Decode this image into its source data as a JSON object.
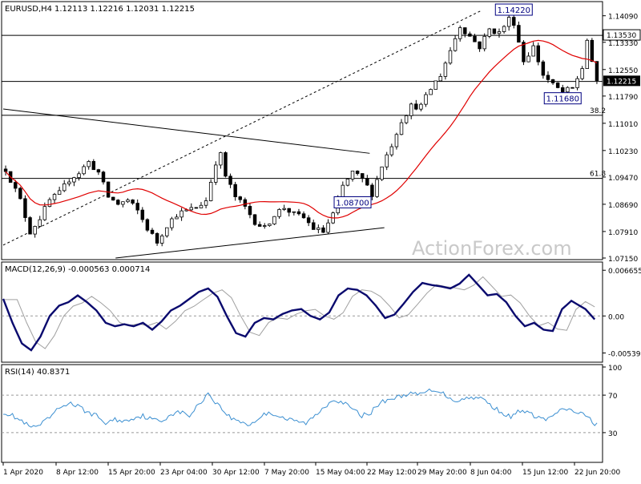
{
  "header": {
    "symbol": "EURUSD,H4",
    "ohlc": "1.12113 1.12216 1.12031 1.12215"
  },
  "watermark": "ActionForex.com",
  "colors": {
    "candle": "#000000",
    "ma": "#e00000",
    "macd_main": "#0a0a6e",
    "macd_signal": "#a0a0a0",
    "rsi": "#3b8fd1",
    "price_badge_bg": "#000000",
    "price_badge_text": "#ffffff",
    "label_border": "#000080",
    "label_text": "#000080"
  },
  "chart_data": [
    {
      "type": "candlestick",
      "title": "EURUSD,H4",
      "ylim": [
        1.0715,
        1.1445
      ],
      "y_ticks": [
        "1.14090",
        "1.13330",
        "1.12550",
        "1.11790",
        "1.11010",
        "1.10230",
        "1.09470",
        "1.08690",
        "1.07910",
        "1.07150"
      ],
      "last_price": "1.12215",
      "level_label": "1.13530",
      "annotations": [
        {
          "text": "1.14220",
          "x": 104,
          "y": 1.1422
        },
        {
          "text": "1.11680",
          "x": 114,
          "y": 1.1168
        },
        {
          "text": "1.08700",
          "x": 71,
          "y": 1.087
        }
      ],
      "fib_labels": [
        {
          "text": "38.2",
          "y": 1.1124
        },
        {
          "text": "61.8",
          "y": 1.0943
        }
      ],
      "horizontal_levels": [
        1.1353,
        1.1221,
        1.1124,
        1.0943
      ],
      "trendlines": [
        {
          "style": "dashed",
          "from": [
            0,
            1.0752
          ],
          "to": [
            98,
            1.1425
          ]
        },
        {
          "style": "solid",
          "from": [
            0,
            1.1142
          ],
          "to": [
            75,
            1.1015
          ]
        },
        {
          "style": "solid",
          "from": [
            23,
            1.0715
          ],
          "to": [
            78,
            1.0802
          ]
        }
      ],
      "candles_count": 122,
      "close_anchors": [
        [
          0,
          1.097
        ],
        [
          3,
          1.088
        ],
        [
          5,
          1.079
        ],
        [
          7,
          1.083
        ],
        [
          9,
          1.088
        ],
        [
          11,
          1.09
        ],
        [
          13,
          1.094
        ],
        [
          15,
          1.096
        ],
        [
          17,
          1.099
        ],
        [
          19,
          1.096
        ],
        [
          21,
          1.089
        ],
        [
          23,
          1.087
        ],
        [
          25,
          1.088
        ],
        [
          27,
          1.085
        ],
        [
          29,
          1.08
        ],
        [
          31,
          1.076
        ],
        [
          33,
          1.081
        ],
        [
          35,
          1.084
        ],
        [
          37,
          1.085
        ],
        [
          39,
          1.086
        ],
        [
          41,
          1.088
        ],
        [
          43,
          1.099
        ],
        [
          44,
          1.101
        ],
        [
          45,
          1.095
        ],
        [
          47,
          1.089
        ],
        [
          49,
          1.086
        ],
        [
          51,
          1.082
        ],
        [
          53,
          1.08
        ],
        [
          55,
          1.084
        ],
        [
          57,
          1.086
        ],
        [
          59,
          1.084
        ],
        [
          61,
          1.083
        ],
        [
          63,
          1.08
        ],
        [
          65,
          1.079
        ],
        [
          67,
          1.084
        ],
        [
          69,
          1.092
        ],
        [
          71,
          1.096
        ],
        [
          73,
          1.094
        ],
        [
          75,
          1.09
        ],
        [
          77,
          1.098
        ],
        [
          79,
          1.104
        ],
        [
          81,
          1.111
        ],
        [
          83,
          1.115
        ],
        [
          85,
          1.115
        ],
        [
          87,
          1.12
        ],
        [
          89,
          1.124
        ],
        [
          91,
          1.131
        ],
        [
          93,
          1.138
        ],
        [
          95,
          1.135
        ],
        [
          97,
          1.132
        ],
        [
          99,
          1.137
        ],
        [
          101,
          1.136
        ],
        [
          103,
          1.14
        ],
        [
          104,
          1.139
        ],
        [
          106,
          1.128
        ],
        [
          108,
          1.132
        ],
        [
          110,
          1.124
        ],
        [
          112,
          1.121
        ],
        [
          114,
          1.119
        ],
        [
          116,
          1.12
        ],
        [
          118,
          1.126
        ],
        [
          119,
          1.134
        ],
        [
          120,
          1.127
        ],
        [
          121,
          1.1222
        ]
      ]
    },
    {
      "type": "line",
      "title": "MACD(12,26,9) -0.000563 0.000714",
      "ylim": [
        -0.0065,
        0.0075
      ],
      "y_ticks": [
        "0.006655",
        "0.00",
        "-0.005391"
      ],
      "series": [
        {
          "name": "main",
          "anchors": [
            [
              0,
              0.0025
            ],
            [
              2,
              -0.001
            ],
            [
              4,
              -0.004
            ],
            [
              6,
              -0.005
            ],
            [
              8,
              -0.003
            ],
            [
              10,
              0.0
            ],
            [
              12,
              0.0015
            ],
            [
              14,
              0.002
            ],
            [
              16,
              0.003
            ],
            [
              18,
              0.002
            ],
            [
              20,
              0.0008
            ],
            [
              22,
              -0.001
            ],
            [
              24,
              -0.0015
            ],
            [
              26,
              -0.0012
            ],
            [
              28,
              -0.0015
            ],
            [
              30,
              -0.001
            ],
            [
              32,
              -0.002
            ],
            [
              34,
              -0.0008
            ],
            [
              36,
              0.0008
            ],
            [
              38,
              0.0015
            ],
            [
              40,
              0.0025
            ],
            [
              42,
              0.0035
            ],
            [
              44,
              0.004
            ],
            [
              46,
              0.0028
            ],
            [
              48,
              0.0
            ],
            [
              50,
              -0.0025
            ],
            [
              52,
              -0.003
            ],
            [
              54,
              -0.001
            ],
            [
              56,
              -0.0003
            ],
            [
              58,
              -0.0005
            ],
            [
              60,
              0.0003
            ],
            [
              62,
              0.0008
            ],
            [
              64,
              0.001
            ],
            [
              66,
              0.0
            ],
            [
              68,
              -0.0005
            ],
            [
              70,
              0.0005
            ],
            [
              72,
              0.003
            ],
            [
              74,
              0.004
            ],
            [
              76,
              0.0038
            ],
            [
              78,
              0.003
            ],
            [
              80,
              0.0015
            ],
            [
              82,
              -0.0003
            ],
            [
              84,
              0.0002
            ],
            [
              86,
              0.0018
            ],
            [
              88,
              0.0035
            ],
            [
              90,
              0.0048
            ],
            [
              92,
              0.0045
            ],
            [
              94,
              0.0043
            ],
            [
              96,
              0.004
            ],
            [
              98,
              0.0047
            ],
            [
              100,
              0.006
            ],
            [
              102,
              0.0045
            ],
            [
              104,
              0.003
            ],
            [
              106,
              0.0032
            ],
            [
              108,
              0.002
            ],
            [
              110,
              0.0
            ],
            [
              112,
              -0.0015
            ],
            [
              114,
              -0.001
            ],
            [
              116,
              -0.002
            ],
            [
              118,
              -0.0022
            ],
            [
              120,
              0.001
            ],
            [
              122,
              0.0022
            ],
            [
              125,
              0.001
            ],
            [
              127,
              -0.0005
            ]
          ]
        },
        {
          "name": "signal"
        }
      ]
    },
    {
      "type": "line",
      "title": "RSI(14) 40.8371",
      "ylim": [
        0,
        100
      ],
      "y_ticks": [
        "100",
        "70",
        "30"
      ],
      "levels": [
        70,
        30
      ],
      "series": [
        {
          "name": "rsi",
          "anchors": [
            [
              0,
              52
            ],
            [
              2,
              48
            ],
            [
              4,
              42
            ],
            [
              6,
              35
            ],
            [
              8,
              38
            ],
            [
              10,
              46
            ],
            [
              12,
              56
            ],
            [
              14,
              62
            ],
            [
              16,
              58
            ],
            [
              18,
              52
            ],
            [
              20,
              48
            ],
            [
              22,
              40
            ],
            [
              24,
              44
            ],
            [
              26,
              42
            ],
            [
              28,
              46
            ],
            [
              30,
              48
            ],
            [
              32,
              44
            ],
            [
              34,
              42
            ],
            [
              36,
              50
            ],
            [
              38,
              52
            ],
            [
              40,
              48
            ],
            [
              42,
              60
            ],
            [
              44,
              72
            ],
            [
              45,
              66
            ],
            [
              47,
              55
            ],
            [
              49,
              45
            ],
            [
              51,
              42
            ],
            [
              53,
              38
            ],
            [
              55,
              46
            ],
            [
              57,
              52
            ],
            [
              59,
              48
            ],
            [
              61,
              44
            ],
            [
              63,
              42
            ],
            [
              65,
              40
            ],
            [
              67,
              48
            ],
            [
              69,
              58
            ],
            [
              71,
              66
            ],
            [
              73,
              62
            ],
            [
              75,
              55
            ],
            [
              77,
              48
            ],
            [
              79,
              52
            ],
            [
              81,
              62
            ],
            [
              83,
              66
            ],
            [
              85,
              68
            ],
            [
              87,
              72
            ],
            [
              89,
              70
            ],
            [
              91,
              74
            ],
            [
              93,
              76
            ],
            [
              95,
              70
            ],
            [
              97,
              64
            ],
            [
              99,
              66
            ],
            [
              101,
              68
            ],
            [
              103,
              66
            ],
            [
              105,
              58
            ],
            [
              107,
              52
            ],
            [
              109,
              46
            ],
            [
              111,
              54
            ],
            [
              113,
              50
            ],
            [
              115,
              46
            ],
            [
              117,
              44
            ],
            [
              119,
              52
            ],
            [
              121,
              55
            ],
            [
              123,
              52
            ],
            [
              125,
              48
            ],
            [
              127,
              40
            ]
          ]
        }
      ]
    }
  ],
  "x_axis": {
    "tick_labels": [
      "1 Apr 2020",
      "8 Apr 12:00",
      "15 Apr 20:00",
      "23 Apr 04:00",
      "30 Apr 12:00",
      "7 May 20:00",
      "15 May 04:00",
      "22 May 12:00",
      "29 May 20:00",
      "8 Jun 04:00",
      "15 Jun 12:00",
      "22 Jun 20:00"
    ]
  }
}
